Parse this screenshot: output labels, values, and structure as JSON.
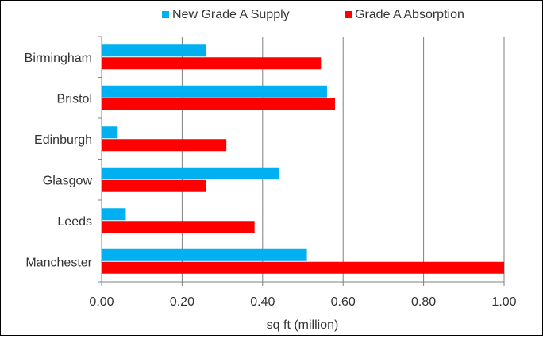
{
  "chart_data": {
    "type": "bar",
    "orientation": "horizontal",
    "categories": [
      "Birmingham",
      "Bristol",
      "Edinburgh",
      "Glasgow",
      "Leeds",
      "Manchester"
    ],
    "series": [
      {
        "name": "New Grade A Supply",
        "color": "#00B0F0",
        "values": [
          0.26,
          0.56,
          0.04,
          0.44,
          0.06,
          0.51
        ]
      },
      {
        "name": "Grade A Absorption",
        "color": "#FF0000",
        "values": [
          0.545,
          0.58,
          0.31,
          0.26,
          0.38,
          1.0
        ]
      }
    ],
    "xlabel": "sq ft (million)",
    "ylabel": "",
    "xlim": [
      0,
      1.0
    ],
    "xticks": [
      "0.00",
      "0.20",
      "0.40",
      "0.60",
      "0.80",
      "1.00"
    ],
    "grid": true,
    "legend_position": "top"
  }
}
